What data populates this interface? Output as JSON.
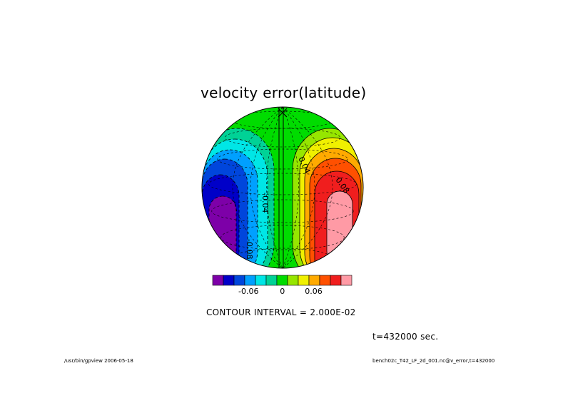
{
  "chart_data": {
    "type": "contour-map",
    "title": "velocity error(latitude)",
    "projection": "orthographic",
    "contour_interval_text": "CONTOUR INTERVAL = 2.000E-02",
    "time_text": "t=432000 sec.",
    "contour_labels": [
      "0.04",
      "0.08",
      "-0.04",
      "-0.08"
    ],
    "colorbar": {
      "colors": [
        "#7d00a8",
        "#0000c8",
        "#0046dc",
        "#00a0ff",
        "#00e6e6",
        "#00d296",
        "#00dc00",
        "#96e600",
        "#f0f000",
        "#ffaa00",
        "#ff5000",
        "#f01e1e",
        "#ff9aa5"
      ],
      "tick_labels": [
        "-0.06",
        "0",
        "0.06"
      ],
      "tick_values": [
        -0.06,
        0,
        0.06
      ]
    },
    "regions": [
      {
        "value": -0.12,
        "color": "#7d00a8"
      },
      {
        "value": -0.1,
        "color": "#0000c8"
      },
      {
        "value": -0.08,
        "color": "#0046dc"
      },
      {
        "value": -0.06,
        "color": "#00a0ff"
      },
      {
        "value": -0.04,
        "color": "#00e6e6"
      },
      {
        "value": -0.02,
        "color": "#00d296"
      },
      {
        "value": 0.0,
        "color": "#00dc00"
      },
      {
        "value": 0.02,
        "color": "#96e600"
      },
      {
        "value": 0.04,
        "color": "#f0f000"
      },
      {
        "value": 0.06,
        "color": "#ffaa00"
      },
      {
        "value": 0.08,
        "color": "#ff5000"
      },
      {
        "value": 0.1,
        "color": "#f01e1e"
      },
      {
        "value": 0.12,
        "color": "#ff9aa5"
      }
    ],
    "grid": true
  },
  "footer": {
    "left": "/usr/bin/gpview  2006-05-18",
    "right": "bench02c_T42_LF_2d_001.nc@v_error,t=432000"
  }
}
